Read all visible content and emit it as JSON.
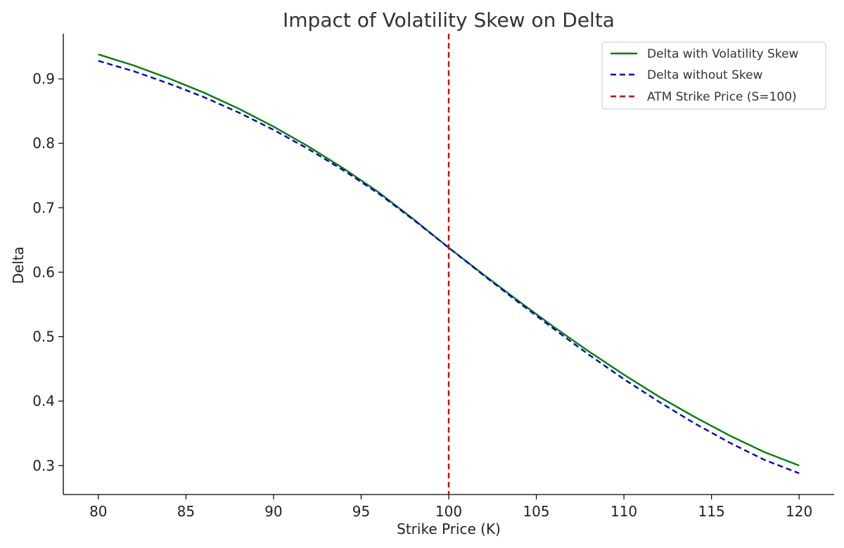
{
  "chart_data": {
    "type": "line",
    "title": "Impact of Volatility Skew on Delta",
    "xlabel": "Strike Price (K)",
    "ylabel": "Delta",
    "xlim": [
      78,
      122
    ],
    "ylim": [
      0.255,
      0.97
    ],
    "xticks": [
      80,
      85,
      90,
      95,
      100,
      105,
      110,
      115,
      120
    ],
    "yticks": [
      0.3,
      0.4,
      0.5,
      0.6,
      0.7,
      0.8,
      0.9
    ],
    "grid": false,
    "legend_position": "top-right",
    "series": [
      {
        "name": "Delta with Volatility Skew",
        "color": "#008000",
        "dash": "solid",
        "x": [
          80,
          82,
          84,
          86,
          88,
          90,
          92,
          94,
          96,
          98,
          100,
          102,
          104,
          106,
          108,
          110,
          112,
          114,
          116,
          118,
          120
        ],
        "y": [
          0.938,
          0.921,
          0.901,
          0.879,
          0.854,
          0.826,
          0.795,
          0.761,
          0.724,
          0.682,
          0.638,
          0.596,
          0.555,
          0.515,
          0.477,
          0.441,
          0.407,
          0.376,
          0.347,
          0.321,
          0.3
        ]
      },
      {
        "name": "Delta without Skew",
        "color": "#0000cc",
        "dash": "dashed",
        "x": [
          80,
          82,
          84,
          86,
          88,
          90,
          92,
          94,
          96,
          98,
          100,
          102,
          104,
          106,
          108,
          110,
          112,
          114,
          116,
          118,
          120
        ],
        "y": [
          0.928,
          0.912,
          0.893,
          0.872,
          0.848,
          0.821,
          0.791,
          0.758,
          0.722,
          0.681,
          0.638,
          0.595,
          0.553,
          0.512,
          0.472,
          0.434,
          0.399,
          0.366,
          0.336,
          0.309,
          0.288
        ]
      }
    ],
    "vlines": [
      {
        "name": "ATM Strike Price (S=100)",
        "x": 100,
        "color": "#dd0000",
        "dash": "dashed"
      }
    ]
  }
}
